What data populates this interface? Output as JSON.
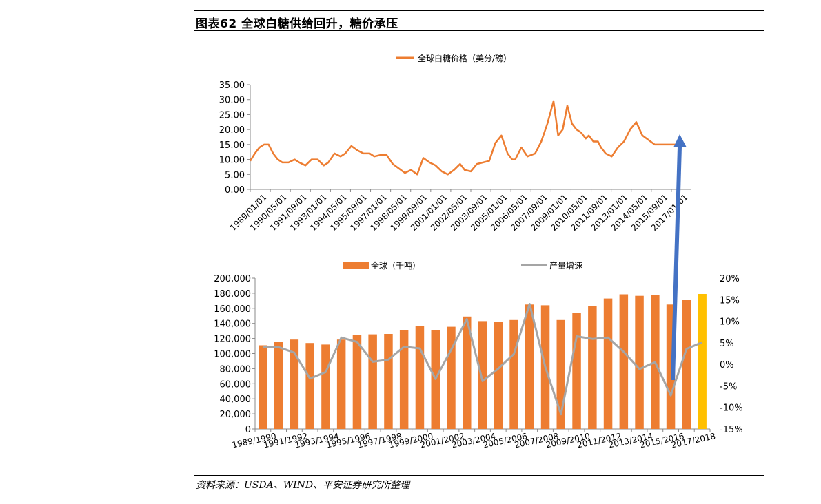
{
  "figure": {
    "title": "图表62   全球白糖供给回升，糖价承压",
    "source": "资料来源：USDA、WIND、平安证券研究所整理"
  },
  "colors": {
    "orange": "#ED7D31",
    "gray": "#A5A5A5",
    "yellow": "#FFC000",
    "arrow": "#4472C4"
  },
  "chart_data": [
    {
      "type": "line",
      "title": "",
      "legend": [
        "全球白糖价格（美分/磅）"
      ],
      "legend_position": "top",
      "ylim": [
        0,
        35
      ],
      "y_ticks": [
        "35.00",
        "30.00",
        "25.00",
        "20.00",
        "15.00",
        "10.00",
        "5.00",
        "0.00"
      ],
      "x_ticks": [
        "1989/01/01",
        "1990/05/01",
        "1991/09/01",
        "1993/01/01",
        "1994/05/01",
        "1995/09/01",
        "1997/01/01",
        "1998/05/01",
        "1999/09/01",
        "2001/01/01",
        "2002/05/01",
        "2003/09/01",
        "2005/01/01",
        "2006/05/01",
        "2007/09/01",
        "2009/01/01",
        "2010/05/01",
        "2011/09/01",
        "2013/01/01",
        "2014/05/01",
        "2015/09/01",
        "2017/01/01"
      ],
      "series": [
        {
          "name": "全球白糖价格（美分/磅）",
          "x": [
            1989.0,
            1989.3,
            1989.6,
            1989.9,
            1990.2,
            1990.5,
            1990.8,
            1991.1,
            1991.5,
            1991.9,
            1992.2,
            1992.6,
            1993.0,
            1993.4,
            1993.8,
            1994.1,
            1994.5,
            1994.9,
            1995.2,
            1995.6,
            1996.0,
            1996.4,
            1996.8,
            1997.1,
            1997.5,
            1997.9,
            1998.3,
            1998.7,
            1999.1,
            1999.5,
            1999.9,
            2000.3,
            2000.7,
            2001.1,
            2001.5,
            2001.9,
            2002.3,
            2002.7,
            2003.0,
            2003.4,
            2003.8,
            2004.2,
            2004.6,
            2005.0,
            2005.4,
            2005.8,
            2006.1,
            2006.3,
            2006.7,
            2007.1,
            2007.6,
            2008.0,
            2008.4,
            2008.8,
            2009.1,
            2009.4,
            2009.7,
            2010.0,
            2010.3,
            2010.6,
            2010.9,
            2011.1,
            2011.4,
            2011.7,
            2011.9,
            2012.2,
            2012.6,
            2013.0,
            2013.4,
            2013.8,
            2014.2,
            2014.6,
            2015.0,
            2015.4,
            2015.7,
            2016.0,
            2016.4,
            2016.7,
            2016.9,
            2017.1,
            2017.3
          ],
          "values": [
            9.5,
            12,
            14,
            15,
            15,
            12,
            10,
            9,
            9,
            10,
            9,
            8,
            10,
            10,
            8,
            9,
            12,
            11,
            12,
            14.5,
            13,
            12,
            12,
            11,
            11.5,
            11.5,
            8.5,
            7,
            5.5,
            6.5,
            5,
            10.5,
            9,
            8,
            6,
            5,
            6.5,
            8.5,
            6.5,
            6,
            8.5,
            9,
            9.5,
            15.5,
            18,
            12,
            10,
            10,
            14,
            11,
            12,
            16,
            22,
            29.5,
            18,
            20,
            28,
            22,
            20,
            19,
            17,
            18,
            16,
            16,
            14,
            12,
            11,
            14,
            16,
            20,
            22.5,
            18,
            16.5,
            15,
            15,
            15,
            15,
            15,
            15,
            15,
            15
          ]
        }
      ]
    },
    {
      "type": "bar",
      "title": "",
      "legend": [
        "全球（千吨）",
        "产量增速"
      ],
      "legend_position": "top",
      "ylim": [
        0,
        200000
      ],
      "y2lim": [
        -15,
        20
      ],
      "y_ticks": [
        "200,000",
        "180,000",
        "160,000",
        "140,000",
        "120,000",
        "100,000",
        "80,000",
        "60,000",
        "40,000",
        "20,000",
        "0"
      ],
      "y2_ticks": [
        "20%",
        "15%",
        "10%",
        "5%",
        "0%",
        "-5%",
        "-10%",
        "-15%"
      ],
      "x_ticks": [
        "1989/1990",
        "1991/1992",
        "1993/1994",
        "1995/1996",
        "1997/1998",
        "1999/2000",
        "2001/2002",
        "2003/2004",
        "2005/2006",
        "2007/2008",
        "2009/2010",
        "2011/2012",
        "2013/2014",
        "2015/2016",
        "2017/2018"
      ],
      "categories": [
        "1989/1990",
        "1990/1991",
        "1991/1992",
        "1992/1993",
        "1993/1994",
        "1994/1995",
        "1995/1996",
        "1996/1997",
        "1997/1998",
        "1998/1999",
        "1999/2000",
        "2000/2001",
        "2001/2002",
        "2002/2003",
        "2003/2004",
        "2004/2005",
        "2005/2006",
        "2006/2007",
        "2007/2008",
        "2008/2009",
        "2009/2010",
        "2010/2011",
        "2011/2012",
        "2012/2013",
        "2013/2014",
        "2014/2015",
        "2015/2016",
        "2016/2017",
        "2017/2018"
      ],
      "series": [
        {
          "name": "全球（千吨）",
          "axis": "left",
          "values": [
            111000,
            115500,
            118500,
            114000,
            112000,
            118500,
            124500,
            125500,
            126000,
            131500,
            136500,
            131000,
            135500,
            149000,
            143000,
            142000,
            144500,
            165000,
            164000,
            144500,
            154000,
            163000,
            173000,
            178500,
            176500,
            177500,
            165000,
            171500,
            179000
          ],
          "highlight_last": true
        },
        {
          "name": "产量增速",
          "axis": "right",
          "type": "line",
          "values": [
            4,
            4,
            2.7,
            -3.3,
            -1.8,
            6.2,
            5.2,
            0.6,
            1.1,
            4.1,
            3.7,
            -3.4,
            3.4,
            10.5,
            -3.9,
            -1,
            2.4,
            14,
            -0.6,
            -11.6,
            6.5,
            5.9,
            6.2,
            2.9,
            -1.1,
            0.5,
            -7.2,
            3.6,
            5.1
          ]
        }
      ]
    }
  ]
}
